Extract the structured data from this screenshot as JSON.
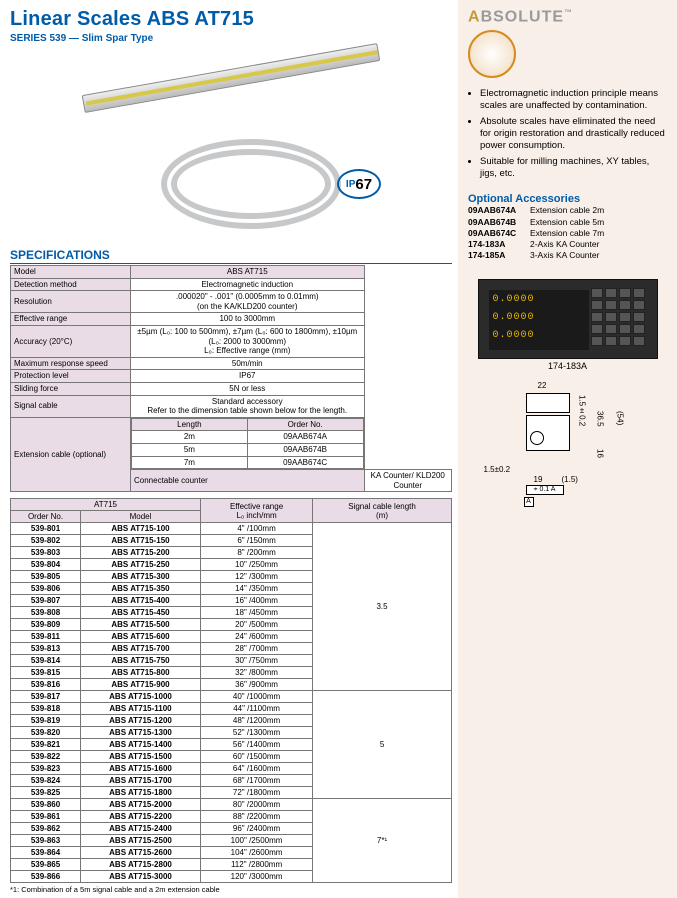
{
  "header": {
    "title": "Linear Scales ABS AT715",
    "subtitle": "SERIES 539 — Slim Spar Type",
    "ip67_label_prefix": "IP",
    "ip67_label_num": "67"
  },
  "spec_heading": "SPECIFICATIONS",
  "spec": {
    "model_h": "Model",
    "model_v": "ABS AT715",
    "detect_h": "Detection method",
    "detect_v": "Electromagnetic induction",
    "res_h": "Resolution",
    "res_v1": ".000020\" - .001\" (0.0005mm to 0.01mm)",
    "res_v2": "(on the KA/KLD200 counter)",
    "eff_h": "Effective range",
    "eff_v": "100 to 3000mm",
    "acc_h": "Accuracy (20°C)",
    "acc_v1": "±5µm (L₀: 100 to 500mm), ±7µm (L₀: 600 to 1800mm), ±10µm (L₀: 2000 to 3000mm)",
    "acc_v2": "L₀: Effective range (mm)",
    "resp_h": "Maximum response speed",
    "resp_v": "50m/min",
    "prot_h": "Protection level",
    "prot_v": "IP67",
    "slide_h": "Sliding force",
    "slide_v": "5N or less",
    "sig_h": "Signal cable",
    "sig_v1": "Standard accessory",
    "sig_v2": "Refer to the dimension table shown below for the length.",
    "ext_h": "Extension cable (optional)",
    "ext_len_h": "Length",
    "ext_ord_h": "Order No.",
    "ext_l1": "2m",
    "ext_o1": "09AAB674A",
    "ext_l2": "5m",
    "ext_o2": "09AAB674B",
    "ext_l3": "7m",
    "ext_o3": "09AAB674C",
    "conn_h": "Connectable counter",
    "conn_v": "KA Counter/ KLD200 Counter"
  },
  "models_header": {
    "at715": "AT715",
    "order": "Order No.",
    "model": "Model",
    "eff": "Effective range",
    "eff2": "L₀ inch/mm",
    "sig": "Signal cable length",
    "sig2": "(m)"
  },
  "models_g1_cable": "3.5",
  "models_g2_cable": "5",
  "models_g3_cable": "7*¹",
  "models_g1": [
    {
      "o": "539-801",
      "m": "ABS AT715-100",
      "r": "4\" /100mm"
    },
    {
      "o": "539-802",
      "m": "ABS AT715-150",
      "r": "6\" /150mm"
    },
    {
      "o": "539-803",
      "m": "ABS AT715-200",
      "r": "8\" /200mm"
    },
    {
      "o": "539-804",
      "m": "ABS AT715-250",
      "r": "10\" /250mm"
    },
    {
      "o": "539-805",
      "m": "ABS AT715-300",
      "r": "12\" /300mm"
    },
    {
      "o": "539-806",
      "m": "ABS AT715-350",
      "r": "14\" /350mm"
    },
    {
      "o": "539-807",
      "m": "ABS AT715-400",
      "r": "16\" /400mm"
    },
    {
      "o": "539-808",
      "m": "ABS AT715-450",
      "r": "18\" /450mm"
    },
    {
      "o": "539-809",
      "m": "ABS AT715-500",
      "r": "20\" /500mm"
    },
    {
      "o": "539-811",
      "m": "ABS AT715-600",
      "r": "24\" /600mm"
    },
    {
      "o": "539-813",
      "m": "ABS AT715-700",
      "r": "28\" /700mm"
    },
    {
      "o": "539-814",
      "m": "ABS AT715-750",
      "r": "30\" /750mm"
    },
    {
      "o": "539-815",
      "m": "ABS AT715-800",
      "r": "32\" /800mm"
    },
    {
      "o": "539-816",
      "m": "ABS AT715-900",
      "r": "36\" /900mm"
    }
  ],
  "models_g2": [
    {
      "o": "539-817",
      "m": "ABS AT715-1000",
      "r": "40\" /1000mm"
    },
    {
      "o": "539-818",
      "m": "ABS AT715-1100",
      "r": "44\" /1100mm"
    },
    {
      "o": "539-819",
      "m": "ABS AT715-1200",
      "r": "48\" /1200mm"
    },
    {
      "o": "539-820",
      "m": "ABS AT715-1300",
      "r": "52\" /1300mm"
    },
    {
      "o": "539-821",
      "m": "ABS AT715-1400",
      "r": "56\" /1400mm"
    },
    {
      "o": "539-822",
      "m": "ABS AT715-1500",
      "r": "60\" /1500mm"
    },
    {
      "o": "539-823",
      "m": "ABS AT715-1600",
      "r": "64\" /1600mm"
    },
    {
      "o": "539-824",
      "m": "ABS AT715-1700",
      "r": "68\" /1700mm"
    },
    {
      "o": "539-825",
      "m": "ABS AT715-1800",
      "r": "72\" /1800mm"
    }
  ],
  "models_g3": [
    {
      "o": "539-860",
      "m": "ABS AT715-2000",
      "r": "80\" /2000mm"
    },
    {
      "o": "539-861",
      "m": "ABS AT715-2200",
      "r": "88\" /2200mm"
    },
    {
      "o": "539-862",
      "m": "ABS AT715-2400",
      "r": "96\" /2400mm"
    },
    {
      "o": "539-863",
      "m": "ABS AT715-2500",
      "r": "100\" /2500mm"
    },
    {
      "o": "539-864",
      "m": "ABS AT715-2600",
      "r": "104\" /2600mm"
    },
    {
      "o": "539-865",
      "m": "ABS AT715-2800",
      "r": "112\" /2800mm"
    },
    {
      "o": "539-866",
      "m": "ABS AT715-3000",
      "r": "120\" /3000mm"
    }
  ],
  "footnote": "*1: Combination of a 5m signal cable and a 2m extension cable",
  "right": {
    "logo_a": "A",
    "logo_rest": "BSOLUTE",
    "logo_tm": "™",
    "b1": "Electromagnetic induction principle means scales are unaffected by contamination.",
    "b2": "Absolute scales have eliminated the need for origin restoration and drastically reduced power consumption.",
    "b3": "Suitable for milling machines, XY tables, jigs, etc.",
    "opt_h": "Optional Accessories",
    "o1c": "09AAB674A",
    "o1d": "Extension cable 2m",
    "o2c": "09AAB674B",
    "o2d": "Extension cable 5m",
    "o3c": "09AAB674C",
    "o3d": "Extension cable 7m",
    "o4c": "174-183A",
    "o4d": "2-Axis KA Counter",
    "o5c": "174-185A",
    "o5d": "3-Axis KA Counter",
    "counter_label": "174-183A",
    "disp_r1": "  0.0000",
    "disp_r2": "  0.0000",
    "disp_r3": "  0.0000"
  },
  "dim": {
    "d22": "22",
    "d15": "1.5±0.2",
    "d365": "36.5",
    "d54": "(54)",
    "d16": "16",
    "d15b": "1.5±0.2",
    "d19": "19",
    "d15c": "(1.5)",
    "pt": "⌖ 0.1 A",
    "a": "A"
  }
}
